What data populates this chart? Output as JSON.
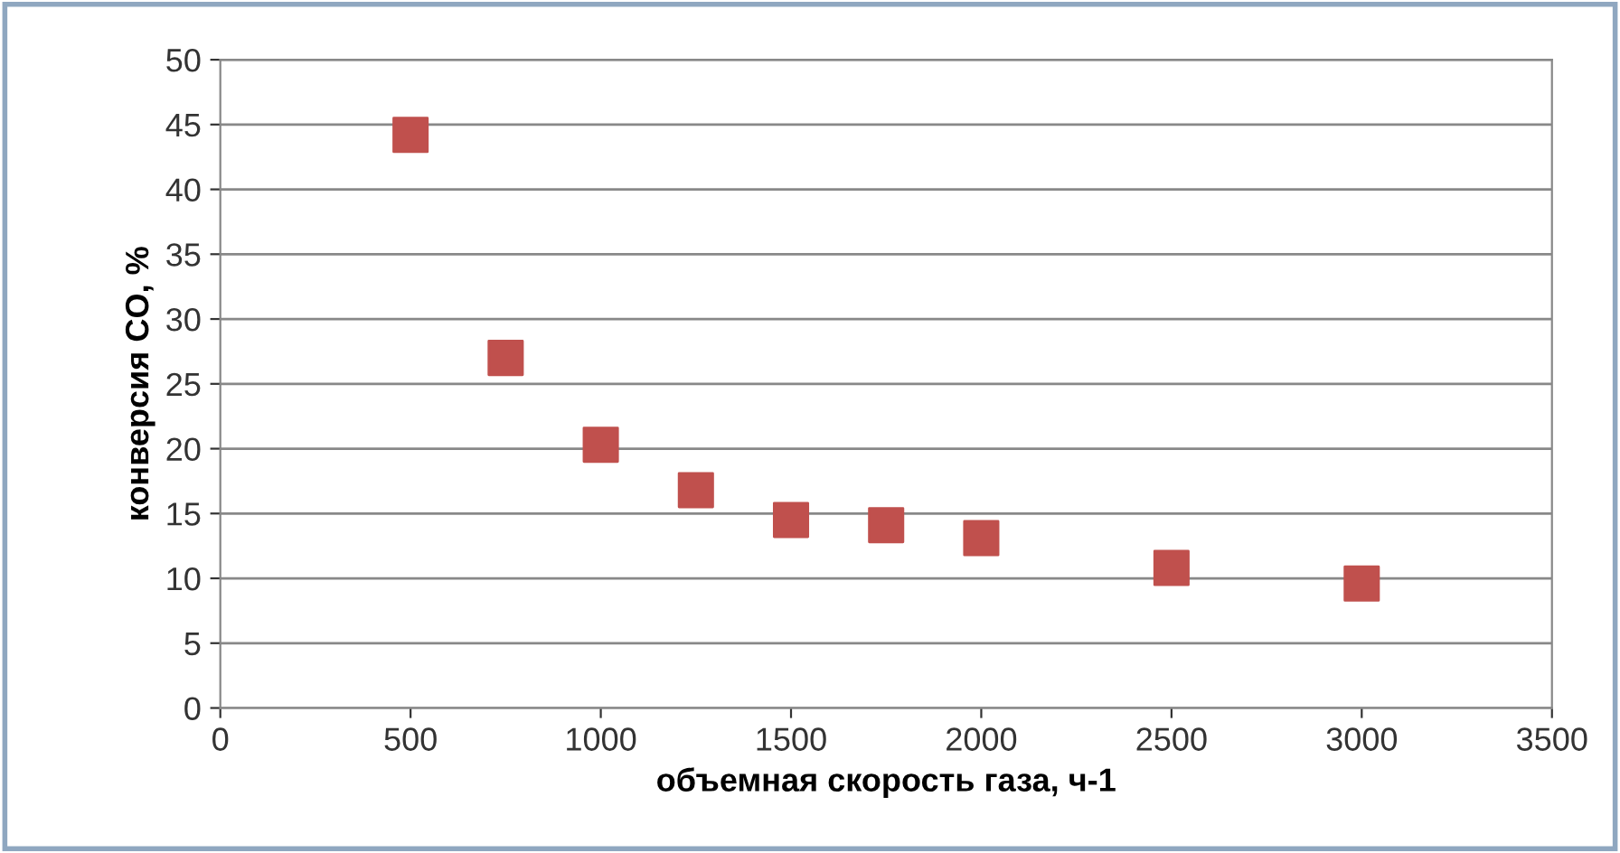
{
  "chart_data": {
    "type": "scatter",
    "xlabel": "объемная скорость газа, ч-1",
    "ylabel": "конверсия CO, %",
    "x": [
      500,
      750,
      1000,
      1250,
      1500,
      1750,
      2000,
      2500,
      3000
    ],
    "series": [
      {
        "color": "#c0504d",
        "values": [
          44.2,
          27.0,
          20.3,
          16.8,
          14.5,
          14.1,
          13.1,
          10.8,
          9.6
        ]
      }
    ],
    "xlim": [
      0,
      3500
    ],
    "xticks": [
      0,
      500,
      1000,
      1500,
      2000,
      2500,
      3000,
      3500
    ],
    "ylim": [
      0,
      50
    ],
    "yticks": [
      0,
      5,
      10,
      15,
      20,
      25,
      30,
      35,
      40,
      45,
      50
    ],
    "grid": "y",
    "marker": "square"
  }
}
